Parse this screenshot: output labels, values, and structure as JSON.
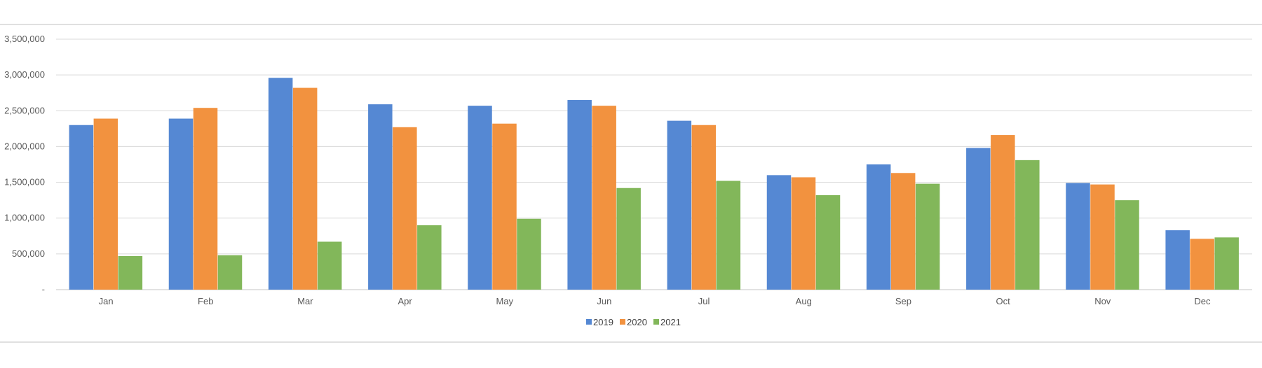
{
  "chart_data": {
    "type": "bar",
    "title": "",
    "xlabel": "",
    "ylabel": "",
    "categories": [
      "Jan",
      "Feb",
      "Mar",
      "Apr",
      "May",
      "Jun",
      "Jul",
      "Aug",
      "Sep",
      "Oct",
      "Nov",
      "Dec"
    ],
    "series": [
      {
        "name": "2019",
        "color": "#5588d3",
        "values": [
          2300000,
          2390000,
          2960000,
          2590000,
          2570000,
          2650000,
          2360000,
          1600000,
          1750000,
          1980000,
          1490000,
          830000
        ]
      },
      {
        "name": "2020",
        "color": "#f2923f",
        "values": [
          2390000,
          2540000,
          2820000,
          2270000,
          2320000,
          2570000,
          2300000,
          1570000,
          1630000,
          2160000,
          1470000,
          710000
        ]
      },
      {
        "name": "2021",
        "color": "#82b75a",
        "values": [
          470000,
          480000,
          670000,
          900000,
          990000,
          1420000,
          1520000,
          1320000,
          1480000,
          1810000,
          1250000,
          730000
        ]
      }
    ],
    "ylim": [
      0,
      3500000
    ],
    "y_ticks": [
      0,
      500000,
      1000000,
      1500000,
      2000000,
      2500000,
      3000000,
      3500000
    ],
    "y_tick_labels": [
      "-",
      "500,000",
      "1,000,000",
      "1,500,000",
      "2,000,000",
      "2,500,000",
      "3,000,000",
      "3,500,000"
    ],
    "grid": true,
    "legend_position": "bottom"
  }
}
